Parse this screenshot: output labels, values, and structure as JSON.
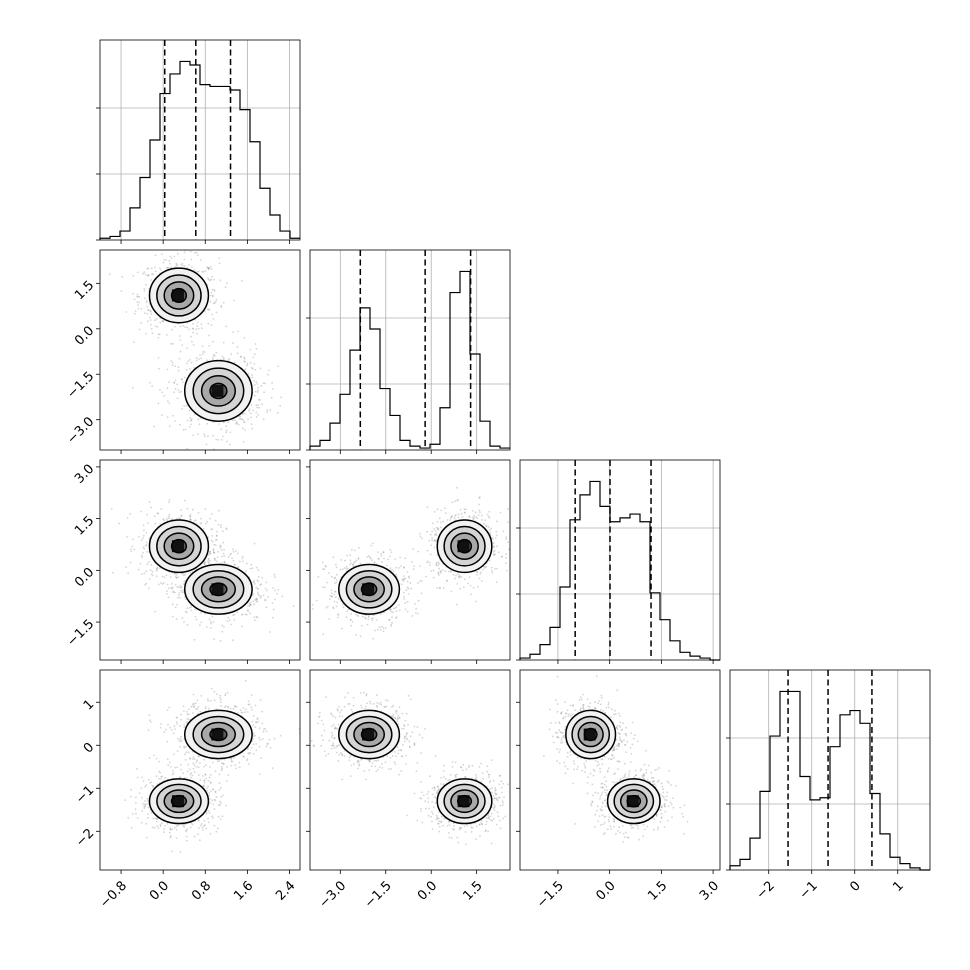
{
  "chart_data": {
    "type": "corner",
    "parameters": [
      {
        "range": [
          -1.2,
          2.6
        ],
        "ticks": [
          "−0.8",
          "0.0",
          "0.8",
          "1.6",
          "2.4"
        ],
        "tick_values": [
          -0.8,
          0.0,
          0.8,
          1.6,
          2.4
        ],
        "quantiles": [
          0.03,
          0.62,
          1.28
        ],
        "hist_edges_start": -1.2,
        "hist_bin_width": 0.19,
        "hist_counts": [
          0.01,
          0.02,
          0.05,
          0.18,
          0.35,
          0.56,
          0.82,
          0.93,
          1.0,
          0.98,
          0.87,
          0.86,
          0.86,
          0.84,
          0.73,
          0.55,
          0.29,
          0.14,
          0.05,
          0.01
        ]
      },
      {
        "range": [
          -4.0,
          2.6
        ],
        "ticks": [
          "−3.0",
          "−1.5",
          "0.0",
          "1.5"
        ],
        "tick_values": [
          -3.0,
          -1.5,
          0.0,
          1.5
        ],
        "quantiles": [
          -2.34,
          -0.2,
          1.3
        ],
        "hist_edges_start": -4.0,
        "hist_bin_width": 0.33,
        "hist_counts": [
          0.02,
          0.05,
          0.14,
          0.29,
          0.52,
          0.74,
          0.63,
          0.32,
          0.18,
          0.05,
          0.02,
          0.01,
          0.03,
          0.22,
          0.82,
          0.93,
          0.5,
          0.15,
          0.02,
          0.01
        ]
      },
      {
        "range": [
          -2.6,
          3.2
        ],
        "ticks": [
          "−1.5",
          "0.0",
          "1.5",
          "3.0"
        ],
        "tick_values": [
          -1.5,
          0.0,
          1.5,
          3.0
        ],
        "quantiles": [
          -1.0,
          0.01,
          1.2
        ],
        "hist_edges_start": -2.6,
        "hist_bin_width": 0.29,
        "hist_counts": [
          0.01,
          0.03,
          0.08,
          0.17,
          0.38,
          0.73,
          0.86,
          0.93,
          0.8,
          0.72,
          0.74,
          0.76,
          0.72,
          0.35,
          0.21,
          0.1,
          0.04,
          0.02,
          0.01,
          0.0
        ]
      },
      {
        "range": [
          -2.9,
          1.75
        ],
        "ticks": [
          "−2",
          "−1",
          "0",
          "1"
        ],
        "tick_values": [
          -2,
          -1,
          0,
          1
        ],
        "quantiles": [
          -1.55,
          -0.62,
          0.4
        ],
        "hist_edges_start": -2.9,
        "hist_bin_width": 0.2325,
        "hist_counts": [
          0.02,
          0.05,
          0.15,
          0.37,
          0.63,
          0.84,
          0.84,
          0.44,
          0.33,
          0.34,
          0.58,
          0.73,
          0.75,
          0.69,
          0.36,
          0.17,
          0.06,
          0.03,
          0.01,
          0.0
        ]
      }
    ],
    "modes": [
      {
        "mean": [
          0.3,
          1.1,
          0.7,
          -1.3
        ],
        "sd": [
          0.28,
          0.45,
          0.38,
          0.26
        ]
      },
      {
        "mean": [
          1.05,
          -2.05,
          -0.55,
          0.25
        ],
        "sd": [
          0.32,
          0.5,
          0.36,
          0.28
        ]
      }
    ],
    "grid": true,
    "quantile_style": "dashed"
  }
}
